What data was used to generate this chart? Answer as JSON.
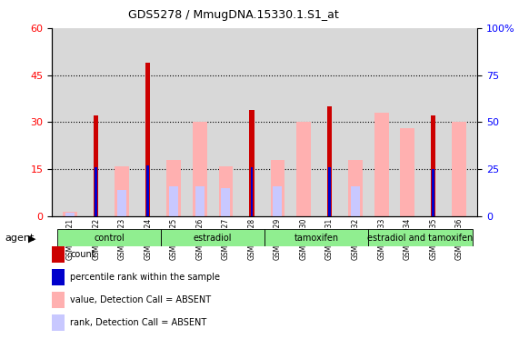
{
  "title": "GDS5278 / MmugDNA.15330.1.S1_at",
  "samples": [
    "GSM362921",
    "GSM362922",
    "GSM362923",
    "GSM362924",
    "GSM362925",
    "GSM362926",
    "GSM362927",
    "GSM362928",
    "GSM362929",
    "GSM362930",
    "GSM362931",
    "GSM362932",
    "GSM362933",
    "GSM362934",
    "GSM362935",
    "GSM362936"
  ],
  "count_values": [
    0,
    32,
    0,
    49,
    0,
    0,
    0,
    34,
    0,
    0,
    35,
    0,
    0,
    0,
    32,
    0
  ],
  "percentile_values": [
    0,
    26,
    0,
    27,
    0,
    0,
    0,
    26,
    0,
    0,
    26,
    0,
    0,
    0,
    25,
    0
  ],
  "absent_value_values": [
    1.5,
    0,
    16,
    0,
    18,
    30,
    16,
    0,
    18,
    30,
    0,
    18,
    33,
    28,
    0,
    30
  ],
  "absent_rank_values": [
    2,
    0,
    14,
    0,
    16,
    16,
    15,
    0,
    16,
    0,
    0,
    16,
    0,
    0,
    0,
    0
  ],
  "ylim_left": [
    0,
    60
  ],
  "ylim_right": [
    0,
    100
  ],
  "yticks_left": [
    0,
    15,
    30,
    45,
    60
  ],
  "yticks_right": [
    0,
    25,
    50,
    75,
    100
  ],
  "count_color": "#CC0000",
  "percentile_color": "#0000CC",
  "absent_value_color": "#FFB0B0",
  "absent_rank_color": "#C8C8FF",
  "bg_color": "#FFFFFF",
  "plot_bg_color": "#D8D8D8",
  "group_labels": [
    "control",
    "estradiol",
    "tamoxifen",
    "estradiol and tamoxifen"
  ],
  "group_starts": [
    0,
    4,
    8,
    12
  ],
  "group_ends": [
    3,
    7,
    11,
    15
  ],
  "group_color": "#90EE90",
  "legend_items": [
    {
      "label": "count",
      "color": "#CC0000"
    },
    {
      "label": "percentile rank within the sample",
      "color": "#0000CC"
    },
    {
      "label": "value, Detection Call = ABSENT",
      "color": "#FFB0B0"
    },
    {
      "label": "rank, Detection Call = ABSENT",
      "color": "#C8C8FF"
    }
  ]
}
